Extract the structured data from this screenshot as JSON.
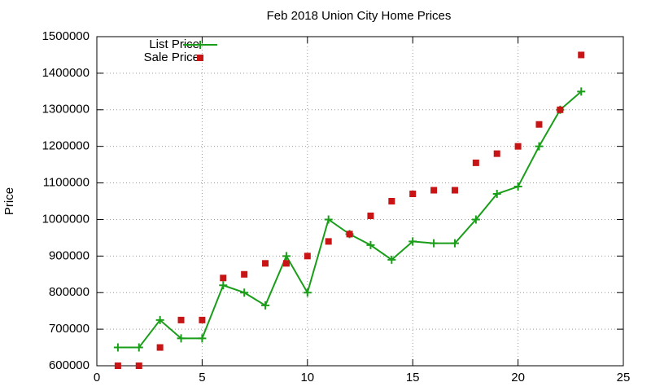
{
  "chart_data": {
    "type": "line",
    "title": "Feb 2018 Union City Home Prices",
    "y_label": "Price",
    "x": [
      1,
      2,
      3,
      4,
      5,
      6,
      7,
      8,
      9,
      10,
      11,
      12,
      13,
      14,
      15,
      16,
      17,
      18,
      19,
      20,
      21,
      22,
      23
    ],
    "series": [
      {
        "name": "List Price",
        "color": "#1a9e1a",
        "mode": "lines+markers",
        "values": [
          650000,
          650000,
          725000,
          675000,
          675000,
          820000,
          800000,
          765000,
          900000,
          800000,
          1000000,
          960000,
          930000,
          890000,
          940000,
          935000,
          935000,
          1000000,
          1070000,
          1090000,
          1200000,
          1300000,
          1350000
        ]
      },
      {
        "name": "Sale Price",
        "color": "#c81414",
        "mode": "markers",
        "values": [
          600000,
          600000,
          650000,
          725000,
          725000,
          840000,
          850000,
          880000,
          880000,
          900000,
          940000,
          960000,
          1010000,
          1050000,
          1070000,
          1080000,
          1080000,
          1155000,
          1180000,
          1200000,
          1260000,
          1300000,
          1450000
        ]
      }
    ],
    "xlim": [
      0,
      25
    ],
    "xticks": [
      0,
      5,
      10,
      15,
      20,
      25
    ],
    "ylim": [
      600000,
      1500000
    ],
    "yticks": [
      600000,
      700000,
      800000,
      900000,
      1000000,
      1100000,
      1200000,
      1300000,
      1400000,
      1500000
    ],
    "grid": true,
    "legend": "top-left"
  }
}
